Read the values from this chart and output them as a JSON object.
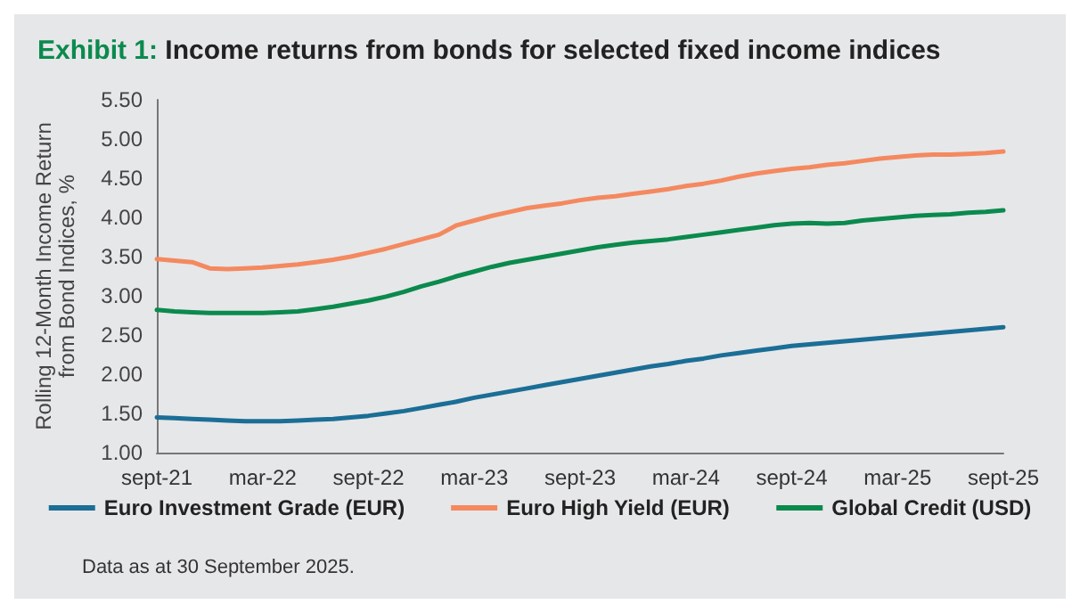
{
  "chart_data": {
    "type": "line",
    "title": "Exhibit 1: Income returns from bonds for selected fixed income indices",
    "ylabel": "Rolling 12-Month Income Return\nfrom Bond Indices, %",
    "categories": [
      "sept-21",
      null,
      null,
      null,
      null,
      null,
      "mar-22",
      null,
      null,
      null,
      null,
      null,
      "sept-22",
      null,
      null,
      null,
      null,
      null,
      "mar-23",
      null,
      null,
      null,
      null,
      null,
      "sept-23",
      null,
      null,
      null,
      null,
      null,
      "mar-24",
      null,
      null,
      null,
      null,
      null,
      "sept-24",
      null,
      null,
      null,
      null,
      null,
      "mar-25",
      null,
      null,
      null,
      null,
      null,
      "sept-25"
    ],
    "series": [
      {
        "name": "Euro Investment Grade (EUR)",
        "color": "#1b6e96",
        "values": [
          1.45,
          1.44,
          1.43,
          1.42,
          1.41,
          1.4,
          1.4,
          1.4,
          1.41,
          1.42,
          1.43,
          1.45,
          1.47,
          1.5,
          1.53,
          1.57,
          1.61,
          1.65,
          1.7,
          1.74,
          1.78,
          1.82,
          1.86,
          1.9,
          1.94,
          1.98,
          2.02,
          2.06,
          2.1,
          2.13,
          2.17,
          2.2,
          2.24,
          2.27,
          2.3,
          2.33,
          2.36,
          2.38,
          2.4,
          2.42,
          2.44,
          2.46,
          2.48,
          2.5,
          2.52,
          2.54,
          2.56,
          2.58,
          2.6
        ]
      },
      {
        "name": "Euro High Yield (EUR)",
        "color": "#f4895f",
        "values": [
          3.47,
          3.45,
          3.43,
          3.35,
          3.34,
          3.35,
          3.36,
          3.38,
          3.4,
          3.43,
          3.46,
          3.5,
          3.55,
          3.6,
          3.66,
          3.72,
          3.78,
          3.9,
          3.96,
          4.02,
          4.07,
          4.12,
          4.15,
          4.18,
          4.22,
          4.25,
          4.27,
          4.3,
          4.33,
          4.36,
          4.4,
          4.43,
          4.47,
          4.52,
          4.56,
          4.59,
          4.62,
          4.64,
          4.67,
          4.69,
          4.72,
          4.75,
          4.77,
          4.79,
          4.8,
          4.8,
          4.81,
          4.82,
          4.84
        ]
      },
      {
        "name": "Global Credit (USD)",
        "color": "#0b8a4e",
        "values": [
          2.82,
          2.8,
          2.79,
          2.78,
          2.78,
          2.78,
          2.78,
          2.79,
          2.8,
          2.83,
          2.86,
          2.9,
          2.94,
          2.99,
          3.05,
          3.12,
          3.18,
          3.25,
          3.31,
          3.37,
          3.42,
          3.46,
          3.5,
          3.54,
          3.58,
          3.62,
          3.65,
          3.68,
          3.7,
          3.72,
          3.75,
          3.78,
          3.81,
          3.84,
          3.87,
          3.9,
          3.92,
          3.93,
          3.92,
          3.93,
          3.96,
          3.98,
          4.0,
          4.02,
          4.03,
          4.04,
          4.06,
          4.07,
          4.09
        ]
      }
    ],
    "ylim": [
      1,
      5.5
    ],
    "yticks": [
      {
        "value": 1,
        "label": "1.00"
      },
      {
        "value": 1.5,
        "label": "1.50"
      },
      {
        "value": 2,
        "label": "2.00"
      },
      {
        "value": 2.5,
        "label": "2.50"
      },
      {
        "value": 3,
        "label": "3.00"
      },
      {
        "value": 3.5,
        "label": "3.50"
      },
      {
        "value": 4,
        "label": "4.00"
      },
      {
        "value": 4.5,
        "label": "4.50"
      },
      {
        "value": 5,
        "label": "5.00"
      },
      {
        "value": 5.5,
        "label": "5.50"
      }
    ],
    "grid": false,
    "legend": "bottom",
    "marker": "none",
    "line_style": "solid",
    "annotations": [
      "Data as at 30 September 2025."
    ]
  }
}
